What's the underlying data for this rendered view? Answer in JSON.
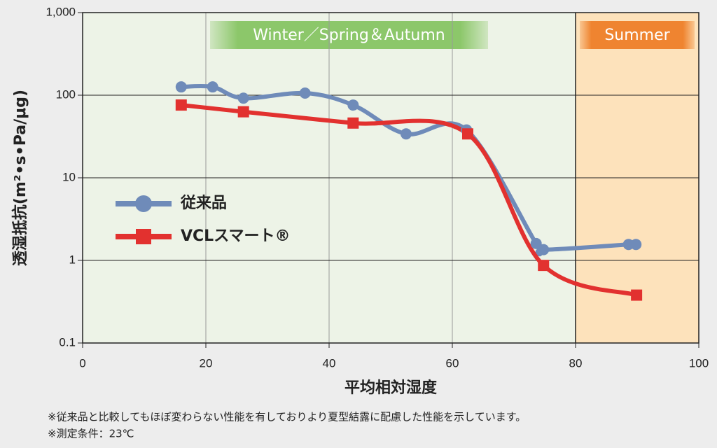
{
  "chart_data": {
    "type": "line",
    "y_label": "透湿抵抗(m²•s•Pa/μg)",
    "x_label": "平均相対湿度",
    "xlim": [
      0,
      100
    ],
    "xticks": [
      0,
      20,
      40,
      60,
      80,
      100
    ],
    "ylim": [
      0.1,
      1000
    ],
    "yscale": "log",
    "yticks": [
      0.1,
      1,
      10,
      100,
      {
        "value": 1000,
        "label": "1,000"
      }
    ],
    "regions": [
      {
        "label": "Winter／Spring＆Autumn",
        "from": 0,
        "to": 80,
        "fill": "#edf3e7",
        "banner": "#8cc76a"
      },
      {
        "label": "Summer",
        "from": 80,
        "to": 100,
        "fill": "#fde2bb",
        "banner": "#ef8430"
      }
    ],
    "series": [
      {
        "name": "従来品",
        "color": "#6f8bb9",
        "marker": "circle",
        "x": [
          16,
          21.1,
          26.1,
          36.1,
          43.9,
          52.5,
          62.3,
          73.6,
          74.8,
          88.6,
          89.8
        ],
        "values": [
          126,
          126,
          92,
          106,
          76,
          34,
          38,
          1.6,
          1.35,
          1.56,
          1.56
        ]
      },
      {
        "name": "VCLスマート®",
        "color": "#e2312f",
        "marker": "square",
        "x": [
          16,
          26.1,
          43.9,
          62.5,
          74.8,
          89.9
        ],
        "values": [
          76,
          63,
          46,
          34,
          0.87,
          0.38
        ]
      }
    ],
    "notes": [
      "※従来品と比較してもほぼ変わらない性能を有しておりより夏型結露に配慮した性能を示しています。",
      "※測定条件：23℃"
    ]
  }
}
